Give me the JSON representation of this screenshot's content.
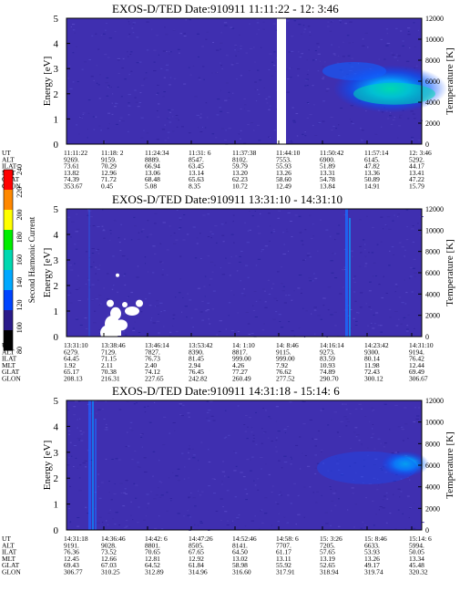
{
  "colorbar": {
    "label": "Second Harmonic Current",
    "ticks": [
      "240",
      "220",
      "200",
      "180",
      "160",
      "140",
      "120",
      "100",
      "80"
    ],
    "colors": [
      "#ff0000",
      "#ff8800",
      "#ffff00",
      "#00ee00",
      "#00d8b0",
      "#00a8ff",
      "#0044ff",
      "#2a1a8a",
      "#000000"
    ]
  },
  "chart_data": [
    {
      "type": "heatmap",
      "title": "EXOS-D/TED   Date:910911  11:11:22 - 12: 3:46",
      "ylabel": "Energy [eV]",
      "y2label": "Temperature [K]",
      "ylim": [
        0,
        5
      ],
      "y2lim": [
        0,
        12000
      ],
      "y_ticks": [
        "0",
        "1",
        "2",
        "3",
        "4",
        "5"
      ],
      "y2_ticks": [
        "0",
        "2000",
        "4000",
        "6000",
        "8000",
        "10000",
        "12000"
      ],
      "data_gap": {
        "from": "11:44:10",
        "note": "white gap"
      },
      "features": [
        {
          "desc": "enhanced flux band",
          "time_range": [
            "11:50:42",
            "12: 3:46"
          ],
          "energy_range": [
            1.5,
            3.2
          ]
        }
      ],
      "table": {
        "row_labels": [
          "UT",
          "ALT",
          "ILAT",
          "MLT",
          "GLAT",
          "GLON"
        ],
        "columns": [
          [
            "11:11:22",
            "9269.",
            "73.61",
            "13.82",
            "74.39",
            "353.67"
          ],
          [
            "11:18: 2",
            "9159.",
            "70.29",
            "12.96",
            "71.72",
            "0.45"
          ],
          [
            "11:24:34",
            "8889.",
            "66.94",
            "13.06",
            "68.48",
            "5.08"
          ],
          [
            "11:31: 6",
            "8547.",
            "63.45",
            "13.14",
            "65.63",
            "8.35"
          ],
          [
            "11:37:38",
            "8102.",
            "59.79",
            "13.20",
            "62.23",
            "10.72"
          ],
          [
            "11:44:10",
            "7553.",
            "55.93",
            "13.26",
            "58.60",
            "12.49"
          ],
          [
            "11:50:42",
            "6900.",
            "51.89",
            "13.31",
            "54.78",
            "13.84"
          ],
          [
            "11:57:14",
            "6145.",
            "47.82",
            "13.36",
            "50.89",
            "14.91"
          ],
          [
            "12: 3:46",
            "5292.",
            "44.17",
            "13.41",
            "47.22",
            "15.79"
          ]
        ]
      }
    },
    {
      "type": "heatmap",
      "title": "EXOS-D/TED   Date:910911  13:31:10 - 14:31:10",
      "ylabel": "Energy [eV]",
      "y2label": "Temperature [K]",
      "ylim": [
        0,
        5
      ],
      "y2lim": [
        0,
        12000
      ],
      "y_ticks": [
        "0",
        "1",
        "2",
        "3",
        "4",
        "5"
      ],
      "y2_ticks": [
        "0",
        "2000",
        "4000",
        "6000",
        "8000",
        "10000",
        "12000"
      ],
      "features": [
        {
          "desc": "white saturated blobs",
          "time_range": [
            "13:38:46",
            "13:46:14"
          ],
          "energy_range": [
            0,
            1.5
          ]
        },
        {
          "desc": "vertical enhanced stripe",
          "time": "14:16:14"
        }
      ],
      "table": {
        "row_labels": [
          "UT",
          "ALT",
          "ILAT",
          "MLT",
          "GLAT",
          "GLON"
        ],
        "columns": [
          [
            "13:31:10",
            "6279.",
            "64.45",
            "1.92",
            "65.17",
            "208.13"
          ],
          [
            "13:38:46",
            "7129.",
            "71.15",
            "2.11",
            "70.38",
            "216.31"
          ],
          [
            "13:46:14",
            "7827.",
            "76.73",
            "2.40",
            "74.12",
            "227.65"
          ],
          [
            "13:53:42",
            "8390.",
            "81.45",
            "2.94",
            "76.45",
            "242.82"
          ],
          [
            "14: 1:10",
            "8817.",
            "999.00",
            "4.26",
            "77.27",
            "260.49"
          ],
          [
            "14: 8:46",
            "9115.",
            "999.00",
            "7.92",
            "76.62",
            "277.52"
          ],
          [
            "14:16:14",
            "9273.",
            "83.59",
            "10.93",
            "74.89",
            "290.70"
          ],
          [
            "14:23:42",
            "9300.",
            "80.14",
            "11.98",
            "72.43",
            "300.12"
          ],
          [
            "14:31:10",
            "9194.",
            "76.42",
            "12.44",
            "69.49",
            "306.67"
          ]
        ]
      }
    },
    {
      "type": "heatmap",
      "title": "EXOS-D/TED   Date:910911  14:31:18 - 15:14: 6",
      "ylabel": "Energy [eV]",
      "y2label": "Temperature [K]",
      "ylim": [
        0,
        5
      ],
      "y2lim": [
        0,
        12000
      ],
      "y_ticks": [
        "0",
        "1",
        "2",
        "3",
        "4",
        "5"
      ],
      "y2_ticks": [
        "0",
        "2000",
        "4000",
        "6000",
        "8000",
        "10000",
        "12000"
      ],
      "features": [
        {
          "desc": "vertical enhanced stripes",
          "time_range": [
            "14:31:18",
            "14:36:46"
          ]
        },
        {
          "desc": "enhanced flux band",
          "time_range": [
            "15: 8:46",
            "15:14: 6"
          ],
          "energy_range": [
            2.0,
            3.0
          ]
        }
      ],
      "table": {
        "row_labels": [
          "UT",
          "ALT",
          "ILAT",
          "MLT",
          "GLAT",
          "GLON"
        ],
        "columns": [
          [
            "14:31:18",
            "9191.",
            "76.36",
            "12.45",
            "69.43",
            "306.77"
          ],
          [
            "14:36:46",
            "9028.",
            "73.52",
            "12.66",
            "67.03",
            "310.25"
          ],
          [
            "14:42: 6",
            "8801.",
            "70.65",
            "12.81",
            "64.52",
            "312.89"
          ],
          [
            "14:47:26",
            "8505.",
            "67.65",
            "12.92",
            "61.84",
            "314.96"
          ],
          [
            "14:52:46",
            "8141.",
            "64.50",
            "13.02",
            "58.98",
            "316.60"
          ],
          [
            "14:58: 6",
            "7707.",
            "61.17",
            "13.11",
            "55.92",
            "317.91"
          ],
          [
            "15: 3:26",
            "7205.",
            "57.65",
            "13.19",
            "52.65",
            "318.94"
          ],
          [
            "15: 8:46",
            "6633.",
            "53.93",
            "13.26",
            "49.17",
            "319.74"
          ],
          [
            "15:14: 6",
            "5994.",
            "50.05",
            "13.34",
            "45.48",
            "320.32"
          ]
        ]
      }
    }
  ]
}
